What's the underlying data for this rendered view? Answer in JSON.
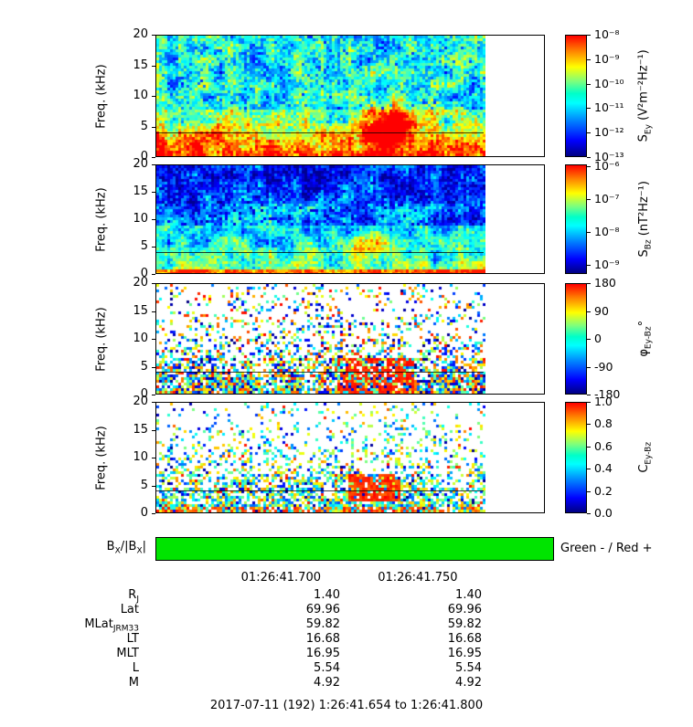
{
  "panels": [
    {
      "ylabel": "Freq. (kHz)",
      "yticks": [
        "20",
        "15",
        "10",
        "5",
        "0"
      ],
      "cb": {
        "main": "S",
        "sub": "Ey",
        "units": " (V²m⁻²Hz⁻¹)",
        "ticks": [
          {
            "l": "10⁻⁸",
            "f": 0.0
          },
          {
            "l": "10⁻⁹",
            "f": 0.2
          },
          {
            "l": "10⁻¹⁰",
            "f": 0.4
          },
          {
            "l": "10⁻¹¹",
            "f": 0.6
          },
          {
            "l": "10⁻¹²",
            "f": 0.8
          },
          {
            "l": "10⁻¹³",
            "f": 1.0
          }
        ]
      },
      "render": {
        "kind": "spec_e",
        "seed": 11
      }
    },
    {
      "ylabel": "Freq. (kHz)",
      "yticks": [
        "20",
        "15",
        "10",
        "5",
        "0"
      ],
      "cb": {
        "main": "S",
        "sub": "Bz",
        "units": " (nT²Hz⁻¹)",
        "ticks": [
          {
            "l": "10⁻⁶",
            "f": 0.02
          },
          {
            "l": "10⁻⁷",
            "f": 0.32
          },
          {
            "l": "10⁻⁸",
            "f": 0.62
          },
          {
            "l": "10⁻⁹",
            "f": 0.92
          }
        ]
      },
      "render": {
        "kind": "spec_b",
        "seed": 22
      }
    },
    {
      "ylabel": "Freq. (kHz)",
      "yticks": [
        "20",
        "15",
        "10",
        "5",
        "0"
      ],
      "cb": {
        "main": "φ",
        "sub": "Ey-Bz",
        "units": "°",
        "ticks": [
          {
            "l": "180",
            "f": 0.0
          },
          {
            "l": "90",
            "f": 0.25
          },
          {
            "l": "0",
            "f": 0.5
          },
          {
            "l": "-90",
            "f": 0.75
          },
          {
            "l": "-180",
            "f": 1.0
          }
        ]
      },
      "render": {
        "kind": "phase",
        "seed": 33
      }
    },
    {
      "ylabel": "Freq. (kHz)",
      "yticks": [
        "20",
        "15",
        "10",
        "5",
        "0"
      ],
      "cb": {
        "main": "C",
        "sub": "Ey-Bz",
        "units": "",
        "ticks": [
          {
            "l": "1.0",
            "f": 0.0
          },
          {
            "l": "0.8",
            "f": 0.2
          },
          {
            "l": "0.6",
            "f": 0.4
          },
          {
            "l": "0.4",
            "f": 0.6
          },
          {
            "l": "0.2",
            "f": 0.8
          },
          {
            "l": "0.0",
            "f": 1.0
          }
        ]
      },
      "render": {
        "kind": "coh",
        "seed": 44
      }
    }
  ],
  "bxbar": {
    "l1": "B",
    "s1": "X",
    "l2": "/|B",
    "s2": "X",
    "l3": "|",
    "legend": "Green - / Red +",
    "color": "#00e400"
  },
  "time_axis": {
    "ticks": [
      {
        "label": "01:26:41.700",
        "frac": 0.315
      },
      {
        "label": "01:26:41.750",
        "frac": 0.658
      }
    ]
  },
  "ephemeris": {
    "rows": [
      {
        "label_main": "R",
        "label_sub": "J",
        "v1": "1.40",
        "v2": "1.40"
      },
      {
        "label_main": "Lat",
        "v1": "69.96",
        "v2": "69.96"
      },
      {
        "label_main": "MLat",
        "label_sub": "JRM33",
        "v1": "59.82",
        "v2": "59.82"
      },
      {
        "label_main": "LT",
        "v1": "16.68",
        "v2": "16.68"
      },
      {
        "label_main": "MLT",
        "v1": "16.95",
        "v2": "16.95"
      },
      {
        "label_main": "L",
        "v1": "5.54",
        "v2": "5.54"
      },
      {
        "label_main": "M",
        "v1": "4.92",
        "v2": "4.92"
      }
    ]
  },
  "footer": "2017-07-11 (192) 1:26:41.654 to 1:26:41.800",
  "chart_data": [
    {
      "type": "heatmap",
      "name": "S_Ey electric power spectrogram",
      "ylabel": "Freq. (kHz)",
      "ylim": [
        0,
        20
      ],
      "yticks": [
        0,
        5,
        10,
        15,
        20
      ],
      "x_start": "01:26:41.654",
      "x_end": "01:26:41.800",
      "x_ticks": [
        "01:26:41.700",
        "01:26:41.750"
      ],
      "colormap": "rainbow (red=high, dark blue=low)",
      "colorbar_label": "S_Ey (V²m⁻²Hz⁻¹)",
      "colorbar_scale": "log",
      "colorbar_ticks": [
        "10⁻⁸",
        "10⁻⁹",
        "10⁻¹⁰",
        "10⁻¹¹",
        "10⁻¹²",
        "10⁻¹³"
      ],
      "overlay_line_kHz": 4.2,
      "features": [
        "intense broadband power (red/orange) below ~7 kHz for whole interval",
        "burst near 01:26:41.75 where red emission extends up to ~9 kHz",
        "moderate mottled green/cyan power 8-20 kHz with sparse blue speckles"
      ]
    },
    {
      "type": "heatmap",
      "name": "S_Bz magnetic power spectrogram",
      "ylabel": "Freq. (kHz)",
      "ylim": [
        0,
        20
      ],
      "yticks": [
        0,
        5,
        10,
        15,
        20
      ],
      "x_start": "01:26:41.654",
      "x_end": "01:26:41.800",
      "colormap": "rainbow (red=high, dark blue=low)",
      "colorbar_label": "S_Bz (nT²Hz⁻¹)",
      "colorbar_scale": "log",
      "colorbar_ticks": [
        "10⁻⁶",
        "10⁻⁷",
        "10⁻⁸",
        "10⁻⁹"
      ],
      "overlay_line_kHz": 4.2,
      "features": [
        "low power (blue / dark navy patches) above ~10 kHz",
        "moderate green power 1-8 kHz",
        "intense narrow red band below ~1 kHz",
        "yellow/orange enhancement near 01:26:41.75 at 3-7 kHz"
      ]
    },
    {
      "type": "heatmap",
      "name": "Ey-Bz cross phase",
      "ylabel": "Freq. (kHz)",
      "ylim": [
        0,
        20
      ],
      "yticks": [
        0,
        5,
        10,
        15,
        20
      ],
      "colorbar_label": "φEy-Bz (°)",
      "colorbar_min": -180,
      "colorbar_max": 180,
      "colorbar_ticks": [
        180,
        90,
        0,
        -90,
        -180
      ],
      "overlay_line_kHz": 4.2,
      "features": [
        "random multicolor phase speckle on white background, denser below ~8 kHz",
        "coherent red (~+180°) patch near 01:26:41.74-41.76 below ~7 kHz"
      ]
    },
    {
      "type": "heatmap",
      "name": "Ey-Bz coherence",
      "ylabel": "Freq. (kHz)",
      "ylim": [
        0,
        20
      ],
      "yticks": [
        0,
        5,
        10,
        15,
        20
      ],
      "colorbar_label": "CEy-Bz",
      "colorbar_min": 0.0,
      "colorbar_max": 1.0,
      "colorbar_ticks": [
        1.0,
        0.8,
        0.6,
        0.4,
        0.2,
        0.0
      ],
      "overlay_line_kHz": 4.2,
      "features": [
        "speckled low-to-moderate coherence, denser below ~8 kHz",
        "high coherence ~1 (red) patch near 01:26:41.74-41.76 at ~2.5-7 kHz",
        "dense mixed colors below ~2 kHz"
      ]
    },
    {
      "type": "indicator-bar",
      "name": "BX sign bar",
      "label": "BX/|BX|",
      "legend": "Green - / Red +",
      "value": "green (negative BX) across entire interval"
    },
    {
      "type": "table",
      "name": "ephemeris",
      "columns": [
        "01:26:41.700",
        "01:26:41.750"
      ],
      "rows": [
        {
          "label": "RJ",
          "values": [
            1.4,
            1.4
          ]
        },
        {
          "label": "Lat",
          "values": [
            69.96,
            69.96
          ]
        },
        {
          "label": "MLatJRM33",
          "values": [
            59.82,
            59.82
          ]
        },
        {
          "label": "LT",
          "values": [
            16.68,
            16.68
          ]
        },
        {
          "label": "MLT",
          "values": [
            16.95,
            16.95
          ]
        },
        {
          "label": "L",
          "values": [
            5.54,
            5.54
          ]
        },
        {
          "label": "M",
          "values": [
            4.92,
            4.92
          ]
        }
      ],
      "caption": "2017-07-11 (192) 1:26:41.654 to 1:26:41.800"
    }
  ]
}
